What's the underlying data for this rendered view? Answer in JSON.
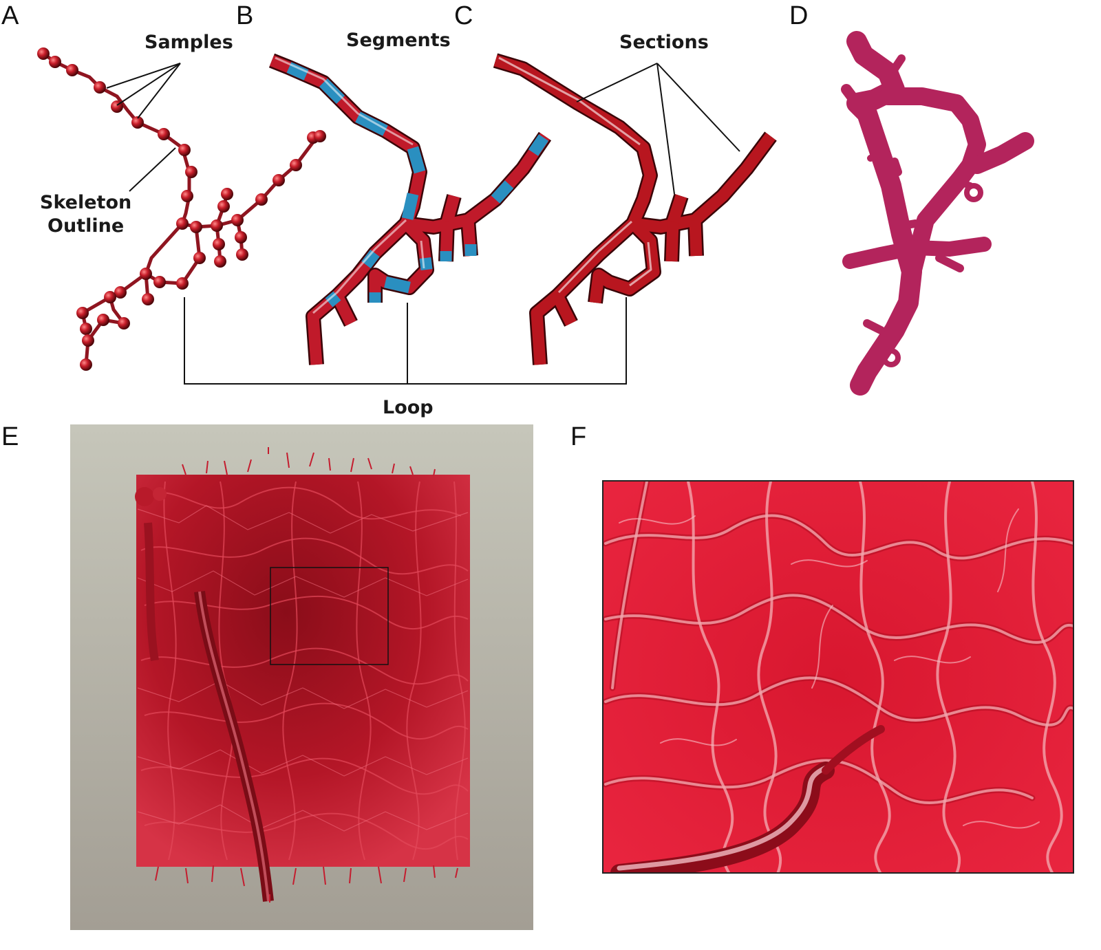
{
  "panels": {
    "A": {
      "letter": "A"
    },
    "B": {
      "letter": "B"
    },
    "C": {
      "letter": "C"
    },
    "D": {
      "letter": "D"
    },
    "E": {
      "letter": "E"
    },
    "F": {
      "letter": "F"
    }
  },
  "labels": {
    "samples": "Samples",
    "segments": "Segments",
    "sections": "Sections",
    "skeleton_line1": "Skeleton",
    "skeleton_line2": "Outline",
    "loop": "Loop"
  },
  "colors": {
    "vessel_red": "#c01a2a",
    "segment_blue": "#2a8fc0",
    "mesh_magenta": "#b3245c",
    "render_bg": "#b9b7ad",
    "closeup_red": "#e01c35"
  }
}
